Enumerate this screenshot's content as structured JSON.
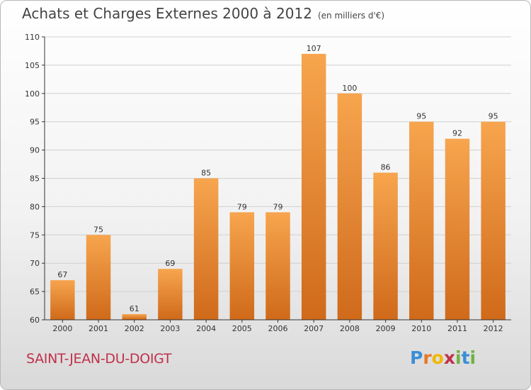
{
  "title": "Achats et Charges Externes 2000 à 2012",
  "subtitle": "(en milliers d'€)",
  "location": "SAINT-JEAN-DU-DOIGT",
  "logo": {
    "letters": [
      "P",
      "r",
      "o",
      "x",
      "i",
      "t",
      "i"
    ],
    "colors": [
      "#3a8fd6",
      "#e87722",
      "#f2b705",
      "#c0304a",
      "#6db33f",
      "#3a8fd6",
      "#6db33f"
    ]
  },
  "colors": {
    "bar_light": "#f7a54e",
    "bar_dark": "#cf6a1a",
    "grid": "#d0d0d0",
    "axis": "#333333",
    "city": "#c0304a"
  },
  "chart_data": {
    "type": "bar",
    "title": "Achats et Charges Externes 2000 à 2012",
    "subtitle": "(en milliers d'€)",
    "categories": [
      "2000",
      "2001",
      "2002",
      "2003",
      "2004",
      "2005",
      "2006",
      "2007",
      "2008",
      "2009",
      "2010",
      "2011",
      "2012"
    ],
    "values": [
      67,
      75,
      61,
      69,
      85,
      79,
      79,
      107,
      100,
      86,
      95,
      92,
      95
    ],
    "ylim": [
      60,
      110
    ],
    "yticks": [
      60,
      65,
      70,
      75,
      80,
      85,
      90,
      95,
      100,
      105,
      110
    ],
    "grid": true,
    "legend": "none"
  }
}
